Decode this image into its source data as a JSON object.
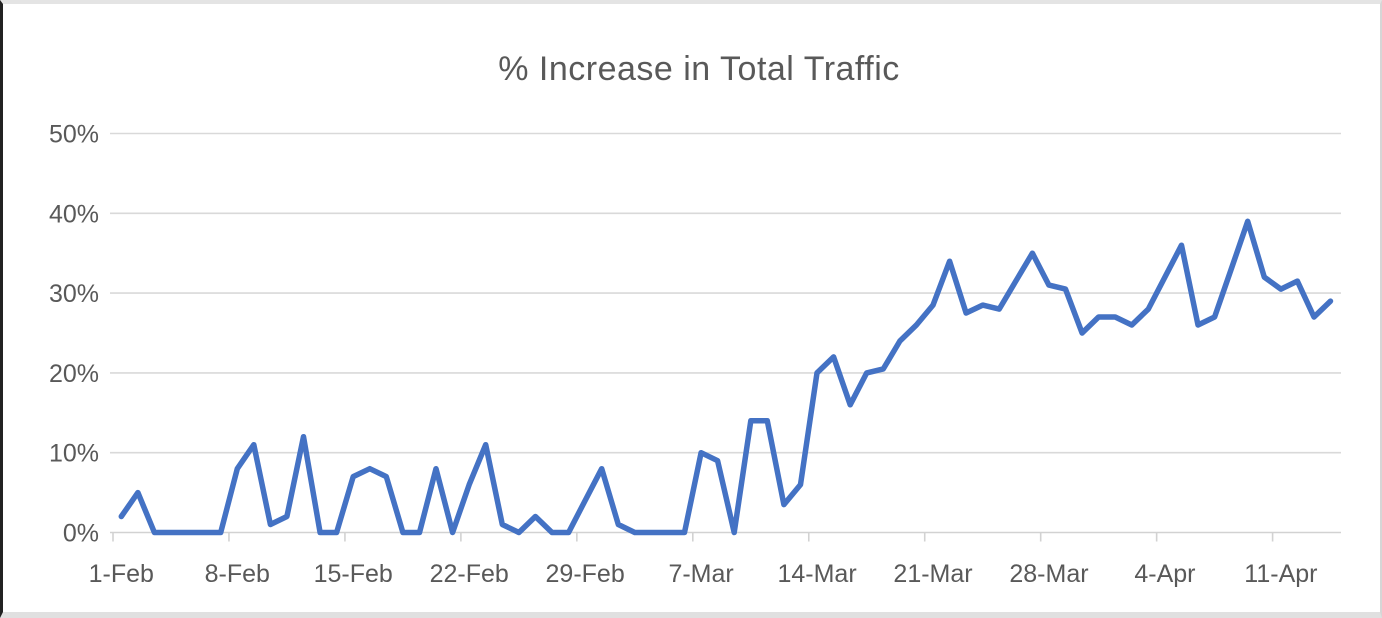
{
  "chart_data": {
    "type": "line",
    "title": "% Increase in Total Traffic",
    "xlabel": "",
    "ylabel": "",
    "ylim": [
      0,
      50
    ],
    "grid": "horizontal",
    "legend": "none",
    "y_ticks": [
      0,
      10,
      20,
      30,
      40,
      50
    ],
    "y_tick_labels": [
      "0%",
      "10%",
      "20%",
      "30%",
      "40%",
      "50%"
    ],
    "x_tick_labels": [
      "1-Feb",
      "8-Feb",
      "15-Feb",
      "22-Feb",
      "29-Feb",
      "7-Mar",
      "14-Mar",
      "21-Mar",
      "28-Mar",
      "4-Apr",
      "11-Apr"
    ],
    "x_tick_interval_days": 7,
    "dates": [
      "1-Feb",
      "2-Feb",
      "3-Feb",
      "4-Feb",
      "5-Feb",
      "6-Feb",
      "7-Feb",
      "8-Feb",
      "9-Feb",
      "10-Feb",
      "11-Feb",
      "12-Feb",
      "13-Feb",
      "14-Feb",
      "15-Feb",
      "16-Feb",
      "17-Feb",
      "18-Feb",
      "19-Feb",
      "20-Feb",
      "21-Feb",
      "22-Feb",
      "23-Feb",
      "24-Feb",
      "25-Feb",
      "26-Feb",
      "27-Feb",
      "28-Feb",
      "29-Feb",
      "1-Mar",
      "2-Mar",
      "3-Mar",
      "4-Mar",
      "5-Mar",
      "6-Mar",
      "7-Mar",
      "8-Mar",
      "9-Mar",
      "10-Mar",
      "11-Mar",
      "12-Mar",
      "13-Mar",
      "14-Mar",
      "15-Mar",
      "16-Mar",
      "17-Mar",
      "18-Mar",
      "19-Mar",
      "20-Mar",
      "21-Mar",
      "22-Mar",
      "23-Mar",
      "24-Mar",
      "25-Mar",
      "26-Mar",
      "27-Mar",
      "28-Mar",
      "29-Mar",
      "30-Mar",
      "31-Mar",
      "1-Apr",
      "2-Apr",
      "3-Apr",
      "4-Apr",
      "5-Apr",
      "6-Apr",
      "7-Apr",
      "8-Apr",
      "9-Apr",
      "10-Apr",
      "11-Apr",
      "12-Apr",
      "13-Apr",
      "14-Apr"
    ],
    "series": [
      {
        "name": "% Increase in Total Traffic",
        "unit": "percent",
        "values": [
          2,
          5,
          0,
          0,
          0,
          0,
          0,
          8,
          11,
          1,
          2,
          12,
          0,
          0,
          7,
          8,
          7,
          0,
          0,
          8,
          0,
          6,
          11,
          1,
          0,
          2,
          0,
          0,
          4,
          8,
          1,
          0,
          0,
          0,
          0,
          10,
          9,
          0,
          14,
          14,
          3.5,
          6,
          20,
          22,
          16,
          20,
          20.5,
          24,
          26,
          28.5,
          34,
          27.5,
          28.5,
          28,
          31.5,
          35,
          31,
          30.5,
          25,
          27,
          27,
          26,
          28,
          32,
          36,
          26,
          27,
          33,
          39,
          32,
          30.5,
          31.5,
          27,
          29
        ]
      }
    ],
    "colors": {
      "line": "#4472C4",
      "gridline": "#D9D9D9",
      "axis_line": "#D2D2D2",
      "text": "#595959",
      "background": "#FFFFFF"
    }
  }
}
